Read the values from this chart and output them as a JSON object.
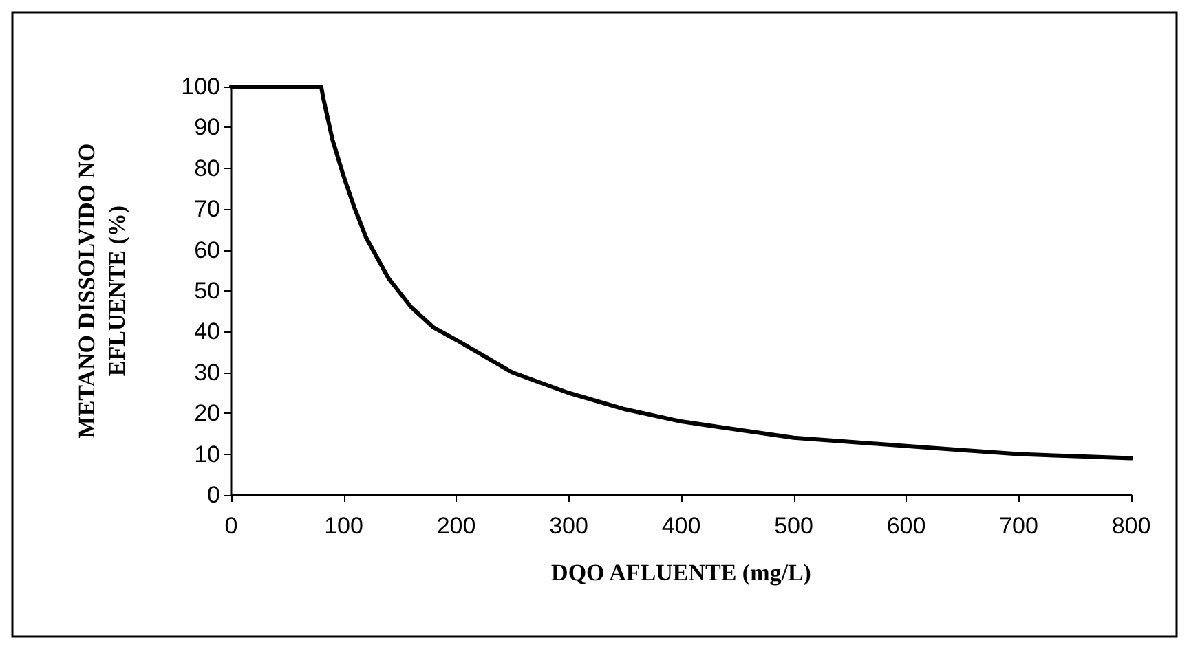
{
  "chart_data": {
    "type": "line",
    "xlabel": "DQO AFLUENTE (mg/L)",
    "ylabel": "METANO DISSOLVIDO NO\nEFLUENTE (%)",
    "x": [
      0,
      20,
      40,
      60,
      80,
      82,
      90,
      100,
      110,
      120,
      140,
      160,
      180,
      200,
      250,
      300,
      350,
      400,
      450,
      500,
      550,
      600,
      650,
      700,
      750,
      800
    ],
    "series": [
      {
        "color": "#000000",
        "values": [
          100,
          100,
          100,
          100,
          100,
          97,
          87,
          78,
          70,
          63,
          53,
          46,
          41,
          38,
          30,
          25,
          21,
          18,
          16,
          14,
          13,
          12,
          11,
          10,
          9.5,
          9
        ]
      }
    ],
    "xlim": [
      0,
      800
    ],
    "xticks": [
      0,
      100,
      200,
      300,
      400,
      500,
      600,
      700,
      800
    ],
    "ylim": [
      0,
      100
    ],
    "yticks": [
      0,
      10,
      20,
      30,
      40,
      50,
      60,
      70,
      80,
      90,
      100
    ],
    "grid": false,
    "marker": "none",
    "line_style": "solid"
  }
}
